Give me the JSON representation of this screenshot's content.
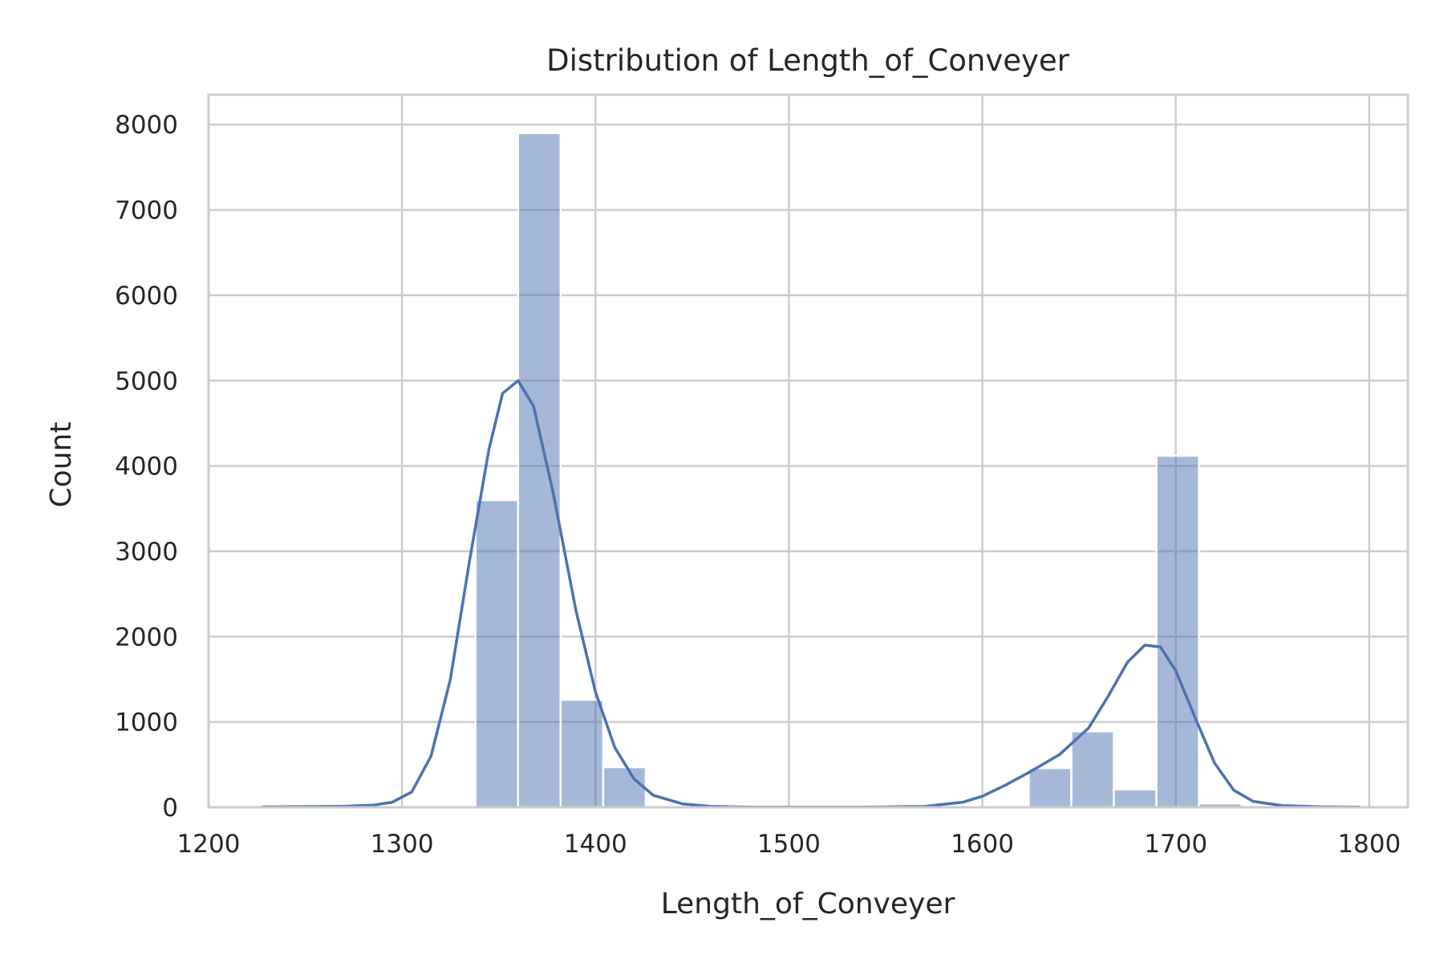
{
  "chart_data": {
    "type": "bar",
    "title": "Distribution of Length_of_Conveyer",
    "xlabel": "Length_of_Conveyer",
    "ylabel": "Count",
    "xlim": [
      1200,
      1820
    ],
    "ylim": [
      0,
      8350
    ],
    "xticks": [
      1200,
      1300,
      1400,
      1500,
      1600,
      1700,
      1800
    ],
    "yticks": [
      0,
      1000,
      2000,
      3000,
      4000,
      5000,
      6000,
      7000,
      8000
    ],
    "grid": true,
    "bar_color": "#4c72b0",
    "kde_color": "#4c72b0",
    "bins": [
      {
        "x0": 1228,
        "x1": 1250,
        "count": 15
      },
      {
        "x0": 1250,
        "x1": 1272,
        "count": 0
      },
      {
        "x0": 1272,
        "x1": 1294,
        "count": 0
      },
      {
        "x0": 1294,
        "x1": 1316,
        "count": 0
      },
      {
        "x0": 1316,
        "x1": 1338,
        "count": 0
      },
      {
        "x0": 1338,
        "x1": 1360,
        "count": 3600
      },
      {
        "x0": 1360,
        "x1": 1382,
        "count": 7900
      },
      {
        "x0": 1382,
        "x1": 1404,
        "count": 1260
      },
      {
        "x0": 1404,
        "x1": 1426,
        "count": 470
      },
      {
        "x0": 1426,
        "x1": 1448,
        "count": 0
      },
      {
        "x0": 1448,
        "x1": 1470,
        "count": 0
      },
      {
        "x0": 1470,
        "x1": 1492,
        "count": 0
      },
      {
        "x0": 1492,
        "x1": 1514,
        "count": 0
      },
      {
        "x0": 1514,
        "x1": 1536,
        "count": 0
      },
      {
        "x0": 1536,
        "x1": 1558,
        "count": 0
      },
      {
        "x0": 1558,
        "x1": 1580,
        "count": 0
      },
      {
        "x0": 1580,
        "x1": 1602,
        "count": 0
      },
      {
        "x0": 1602,
        "x1": 1624,
        "count": 0
      },
      {
        "x0": 1624,
        "x1": 1646,
        "count": 460
      },
      {
        "x0": 1646,
        "x1": 1668,
        "count": 890
      },
      {
        "x0": 1668,
        "x1": 1690,
        "count": 210
      },
      {
        "x0": 1690,
        "x1": 1712,
        "count": 4120
      },
      {
        "x0": 1712,
        "x1": 1734,
        "count": 45
      },
      {
        "x0": 1734,
        "x1": 1756,
        "count": 0
      },
      {
        "x0": 1756,
        "x1": 1778,
        "count": 0
      },
      {
        "x0": 1778,
        "x1": 1795,
        "count": 10
      }
    ],
    "kde": [
      [
        1228,
        5
      ],
      [
        1250,
        8
      ],
      [
        1270,
        12
      ],
      [
        1285,
        25
      ],
      [
        1295,
        60
      ],
      [
        1305,
        180
      ],
      [
        1315,
        600
      ],
      [
        1325,
        1500
      ],
      [
        1335,
        2900
      ],
      [
        1345,
        4200
      ],
      [
        1352,
        4850
      ],
      [
        1360,
        5000
      ],
      [
        1368,
        4700
      ],
      [
        1378,
        3700
      ],
      [
        1390,
        2300
      ],
      [
        1400,
        1350
      ],
      [
        1410,
        700
      ],
      [
        1420,
        330
      ],
      [
        1430,
        140
      ],
      [
        1445,
        40
      ],
      [
        1460,
        10
      ],
      [
        1480,
        3
      ],
      [
        1500,
        2
      ],
      [
        1540,
        2
      ],
      [
        1570,
        10
      ],
      [
        1590,
        60
      ],
      [
        1600,
        130
      ],
      [
        1612,
        260
      ],
      [
        1625,
        420
      ],
      [
        1640,
        620
      ],
      [
        1655,
        930
      ],
      [
        1665,
        1300
      ],
      [
        1675,
        1700
      ],
      [
        1684,
        1900
      ],
      [
        1692,
        1880
      ],
      [
        1700,
        1600
      ],
      [
        1710,
        1050
      ],
      [
        1720,
        520
      ],
      [
        1730,
        200
      ],
      [
        1740,
        70
      ],
      [
        1755,
        20
      ],
      [
        1775,
        6
      ],
      [
        1795,
        3
      ]
    ]
  }
}
